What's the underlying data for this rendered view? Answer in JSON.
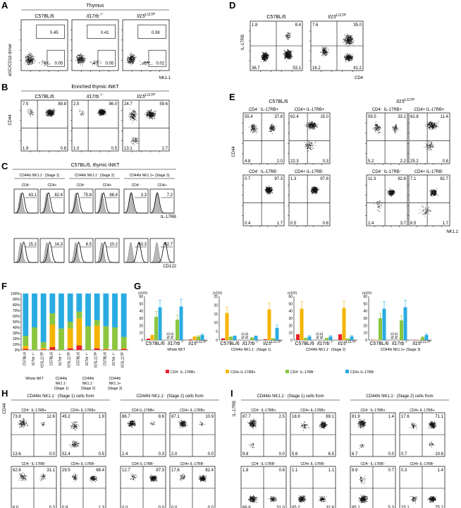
{
  "panel_letters": [
    "A",
    "B",
    "C",
    "D",
    "E",
    "F",
    "G",
    "H",
    "I"
  ],
  "panelA": {
    "title": "Thymus",
    "ylabel": "αGC/CD1d dimer",
    "xlabel": "NK1.1",
    "plots": [
      {
        "title": "C57BL/6",
        "top": "0.45",
        "bottom": "0.05"
      },
      {
        "title": "Il17rb⁻/⁻",
        "top": "0.41",
        "bottom": "0.05"
      },
      {
        "title": "Il15L117P",
        "top": "0.08",
        "bottom": "0.02"
      }
    ]
  },
  "panelB": {
    "title": "Enriched thymic iNKT",
    "ylabel": "CD44",
    "plots": [
      {
        "title": "C57BL/6",
        "q": [
          "7.5",
          "89.8",
          "1.9",
          "0.8"
        ]
      },
      {
        "title": "Il17rb⁻/⁻",
        "q": [
          "2.5",
          "96.0",
          "1.0",
          "0.5"
        ]
      },
      {
        "title": "Il15L117P",
        "q": [
          "24.7",
          "59.6",
          "13.1",
          "2.7"
        ]
      }
    ]
  },
  "panelC": {
    "title": "C57BL/6, thymic iNKT",
    "groups": [
      "CD44lo NK1.1⁻ (Stage 1)",
      "CD44hi NK1.1⁻ (Stage 2)",
      "CD44hi NK1.1+ (Stage 3)"
    ],
    "subs": [
      "CD4⁻",
      "CD4+",
      "CD4⁻",
      "CD4+",
      "CD4⁻",
      "CD4+"
    ],
    "row1": [
      "43.1",
      "82.4",
      "75.8",
      "88.4",
      "3.3",
      "7.2"
    ],
    "row2": [
      "15.2",
      "14.3",
      "8.5",
      "10.2",
      "63.3",
      "62.7"
    ],
    "xlabel1": "IL-17RB",
    "xlabel2": "CD122"
  },
  "panelD": {
    "ylabel": "IL-17RB",
    "xlabel": "CD4",
    "plots": [
      {
        "title": "C57BL/6",
        "q": [
          "1.8",
          "8.4",
          "36.7",
          "53.1"
        ]
      },
      {
        "title": "Il15L117P",
        "q": [
          "7.6",
          "35.0",
          "16.2",
          "41.2"
        ]
      }
    ]
  },
  "panelE": {
    "titles": [
      "C57BL/6",
      "Il15L117P"
    ],
    "ylabel": "CD44",
    "xlabel": "NK1.1",
    "plots": [
      {
        "title": "CD4⁻ IL-17RB+",
        "q": [
          "55.4",
          "37.8",
          "4.8",
          "2.0"
        ]
      },
      {
        "title": "CD4+ IL-17RB+",
        "q": [
          "62.4",
          "15.0",
          "22.3",
          "0.3"
        ]
      },
      {
        "title": "CD4⁻ IL-17RB⁻",
        "q": [
          "0.7",
          "97.3",
          "0.4",
          "1.7"
        ]
      },
      {
        "title": "CD4+ IL-17RB⁻",
        "q": [
          "1.3",
          "97.8",
          "0.5",
          "0.6"
        ]
      },
      {
        "title": "CD4⁻ IL-17RB+",
        "q": [
          "59.5",
          "33.1",
          "5.2",
          "2.2"
        ]
      },
      {
        "title": "CD4+ IL-17RB+",
        "q": [
          "62.8",
          "11.4",
          "25.2",
          "0.8"
        ]
      },
      {
        "title": "CD4⁻ IL-17RB⁻",
        "q": [
          "11.3",
          "82.6",
          "2.4",
          "3.7"
        ]
      },
      {
        "title": "CD4+ IL-17RB⁻",
        "q": [
          "7.1",
          "82.7",
          "8.5",
          "1.7"
        ]
      }
    ]
  },
  "panelF": {
    "yticks": [
      "100%",
      "90%",
      "80%",
      "70%",
      "60%",
      "50%",
      "40%",
      "30%",
      "20%",
      "10%",
      "0%"
    ],
    "xlabels": [
      "C57BL/6",
      "Il17rb⁻/⁻",
      "Il15L117P",
      "C57BL/6",
      "Il17rb⁻/⁻",
      "Il15L117P",
      "C57BL/6",
      "Il17rb⁻/⁻",
      "Il15L117P",
      "C57BL/6",
      "Il17rb⁻/⁻",
      "Il15L117P"
    ],
    "groups": [
      "Whole NKT",
      "CD44lo NK1.1⁻ (Stage 1)",
      "CD44hi NK1.1⁻ (Stage 2)",
      "CD44hi NK1.1+ (Stage 3)"
    ]
  },
  "panelG": {
    "unit": "(x10³)",
    "legend": [
      "CD4⁻ IL-17RB+",
      "CD4+ IL-17RB+",
      "CD4⁻ IL-17RB⁻",
      "CD4+ IL-17RB⁻"
    ],
    "colors": [
      "#e8202a",
      "#f5b400",
      "#8cc63f",
      "#29abe2"
    ],
    "strains": [
      "C57BL/6",
      "Il17rb⁻/⁻",
      "Il15L117P"
    ],
    "nd": "N.D.",
    "subplots": [
      {
        "label": "Whole NKT",
        "yticks": [
          "60",
          "50",
          "40",
          "30",
          "20",
          "10",
          "0"
        ]
      },
      {
        "label": "CD44lo NK1.1⁻ (Stage 1)",
        "yticks": [
          "25",
          "20",
          "15",
          "10",
          "5",
          "0"
        ]
      },
      {
        "label": "CD44hi NK1.1⁻ (Stage 2)",
        "yticks": [
          "60",
          "50",
          "40",
          "30",
          "20",
          "10",
          "0"
        ]
      },
      {
        "label": "CD44hi NK1.1+ (Stage 3)",
        "yticks": [
          "60",
          "50",
          "40",
          "30",
          "20",
          "10",
          "0"
        ]
      }
    ]
  },
  "chart_data": [
    {
      "type": "bar",
      "title": "",
      "stacked": true,
      "categories": [
        "C57BL/6",
        "Il17rb-/-",
        "Il15L117P",
        "C57BL/6",
        "Il17rb-/-",
        "Il15L117P",
        "C57BL/6",
        "Il17rb-/-",
        "Il15L117P",
        "C57BL/6",
        "Il17rb-/-",
        "Il15L117P"
      ],
      "series": [
        {
          "name": "CD4- IL-17RB+",
          "values": [
            2,
            0,
            1,
            5,
            0,
            3,
            8,
            0,
            3,
            1,
            0,
            2
          ]
        },
        {
          "name": "CD4+ IL-17RB+",
          "values": [
            5,
            0,
            3,
            40,
            0,
            35,
            48,
            0,
            40,
            1,
            0,
            1
          ]
        },
        {
          "name": "CD4- IL-17RB-",
          "values": [
            18,
            40,
            10,
            20,
            38,
            12,
            12,
            42,
            10,
            40,
            40,
            20
          ]
        },
        {
          "name": "CD4+ IL-17RB-",
          "values": [
            75,
            60,
            86,
            35,
            62,
            50,
            32,
            58,
            47,
            58,
            60,
            77
          ]
        }
      ],
      "ylim": [
        0,
        100
      ]
    },
    {
      "type": "bar",
      "title": "",
      "categories": [
        "C57BL/6",
        "Il17rb-/-",
        "Il15L117P"
      ],
      "series": [
        {
          "name": "CD4- IL-17RB+",
          "values": [
            2,
            0,
            1
          ]
        },
        {
          "name": "CD4+ IL-17RB+",
          "values": [
            7,
            0,
            5
          ]
        },
        {
          "name": "CD4- IL-17RB-",
          "values": [
            32,
            28,
            5
          ]
        },
        {
          "name": "CD4+ IL-17RB-",
          "values": [
            45,
            46,
            7
          ]
        }
      ],
      "ylim": [
        0,
        60
      ]
    },
    {
      "type": "bar",
      "title": "",
      "categories": [
        "C57BL/6",
        "Il17rb-/-",
        "Il15L117P"
      ],
      "series": [
        {
          "name": "CD4- IL-17RB+",
          "values": [
            1,
            0,
            0.5
          ]
        },
        {
          "name": "CD4+ IL-17RB+",
          "values": [
            15.5,
            0,
            17.5
          ]
        },
        {
          "name": "CD4- IL-17RB-",
          "values": [
            2,
            1.5,
            1
          ]
        },
        {
          "name": "CD4+ IL-17RB-",
          "values": [
            2.5,
            2.5,
            7
          ]
        }
      ],
      "ylim": [
        0,
        25
      ]
    },
    {
      "type": "bar",
      "title": "",
      "categories": [
        "C57BL/6",
        "Il17rb-/-",
        "Il15L117P"
      ],
      "series": [
        {
          "name": "CD4- IL-17RB+",
          "values": [
            8,
            0,
            8
          ]
        },
        {
          "name": "CD4+ IL-17RB+",
          "values": [
            43,
            0,
            44
          ]
        },
        {
          "name": "CD4- IL-17RB-",
          "values": [
            3,
            3,
            2
          ]
        },
        {
          "name": "CD4+ IL-17RB-",
          "values": [
            5,
            5,
            5
          ]
        }
      ],
      "ylim": [
        0,
        60
      ]
    },
    {
      "type": "bar",
      "title": "",
      "categories": [
        "C57BL/6",
        "Il17rb-/-",
        "Il15L117P"
      ],
      "series": [
        {
          "name": "CD4- IL-17RB+",
          "values": [
            0.5,
            0,
            0.3
          ]
        },
        {
          "name": "CD4+ IL-17RB+",
          "values": [
            0.5,
            0,
            0.3
          ]
        },
        {
          "name": "CD4- IL-17RB-",
          "values": [
            30,
            27,
            4
          ]
        },
        {
          "name": "CD4+ IL-17RB-",
          "values": [
            43,
            45,
            7
          ]
        }
      ],
      "ylim": [
        0,
        60
      ]
    }
  ],
  "panelH": {
    "titles": [
      "CD44lo NK1.1⁻ (Stage 1) cells from",
      "CD44hi NK1.1⁻ (Stage 2) cells from"
    ],
    "ylabel": "CD44",
    "xlabel": "NK1.1",
    "plots": [
      {
        "title": "CD4⁻ IL-17RB+",
        "q": [
          "73.8",
          "12.6",
          "13.6",
          "0.0"
        ]
      },
      {
        "title": "CD4+ IL-17RB+",
        "q": [
          "45.2",
          "1.9",
          "52.4",
          "0.5"
        ]
      },
      {
        "title": "CD4⁻ IL-17RB⁻",
        "q": [
          "62.6",
          "31.1",
          "6.0",
          "0.3"
        ]
      },
      {
        "title": "CD4+ IL-17RB⁻",
        "q": [
          "29.5",
          "68.4",
          "0.8",
          "1.3"
        ]
      },
      {
        "title": "CD4 IL-17RB+",
        "q": [
          "86.7",
          "8.6",
          "2.4",
          "0.3"
        ]
      },
      {
        "title": "CD4+ IL-17RB+",
        "q": [
          "87.1",
          "10.9",
          "2.0",
          "0.0"
        ]
      },
      {
        "title": "CD4 IL-17RB⁻",
        "q": [
          "12.7",
          "87.3",
          "0.0",
          "0.0"
        ]
      },
      {
        "title": "CD4+ IL-17RB⁻",
        "q": [
          "17.6",
          "82.4",
          "0.0",
          "0.0"
        ]
      }
    ]
  },
  "panelI": {
    "titles": [
      "CD44lo NK1.1⁻ (Stage 1) cells from",
      "CD44hi NK1.1⁻ (Stage 2) cells from"
    ],
    "ylabel": "IL-17RB",
    "xlabel": "CD4",
    "plots": [
      {
        "title": "CD4⁻ IL-17RB+",
        "q": [
          "87.7",
          "2.5",
          "9.8",
          "0.0"
        ]
      },
      {
        "title": "CD4+ IL-17RB+",
        "q": [
          "18.9",
          "69.1",
          "5.6",
          "6.5"
        ]
      },
      {
        "title": "CD4⁻ IL-17RB⁻",
        "q": [
          "1.8",
          "0.6",
          "66.6",
          "31.0"
        ]
      },
      {
        "title": "CD4+ IL-17RB⁻",
        "q": [
          "1.1",
          "1.1",
          "65.2",
          "32.6"
        ]
      },
      {
        "title": "CD4⁻ IL-17RB+",
        "q": [
          "81.9",
          "1.4",
          "6.7",
          "0.0"
        ]
      },
      {
        "title": "CD4+ IL-17RB+",
        "q": [
          "17.6",
          "71.1",
          "0.7",
          "10.6"
        ]
      },
      {
        "title": "CD4⁻ IL-17RB⁻",
        "q": [
          "8.9",
          "0.7",
          "85.1",
          "5.3"
        ]
      },
      {
        "title": "CD4+ IL-17RB⁻",
        "q": [
          "0.3",
          "1.4",
          "23.1",
          "75.2"
        ]
      }
    ]
  }
}
